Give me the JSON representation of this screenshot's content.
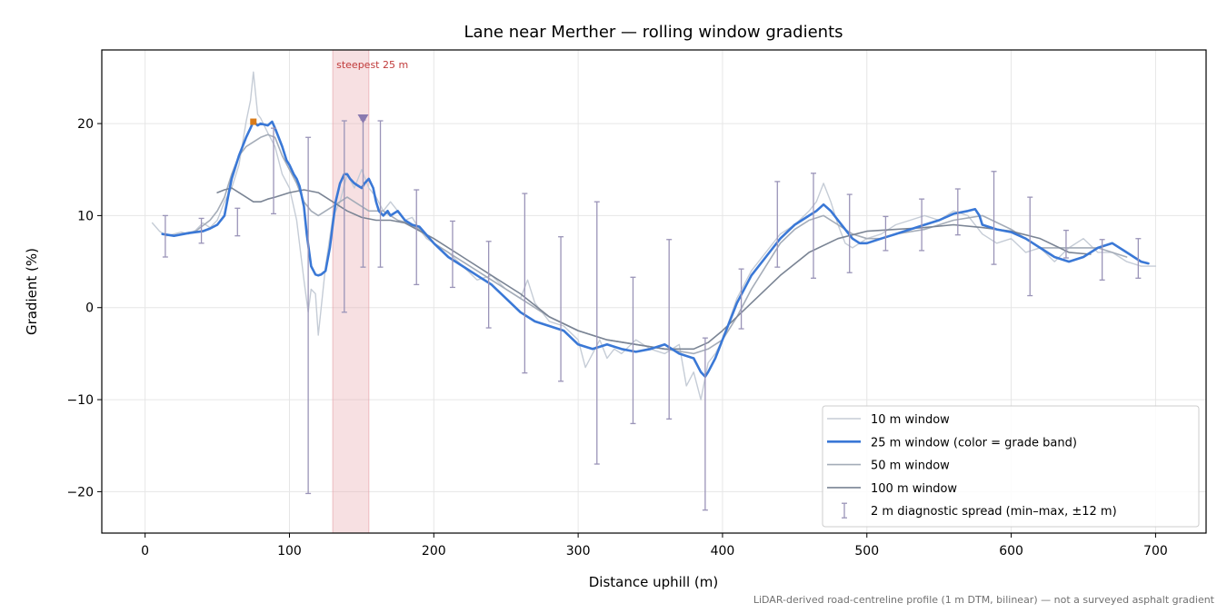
{
  "chart_data": {
    "type": "line",
    "title": "Lane near Merther — rolling window gradients",
    "xlabel": "Distance uphill (m)",
    "ylabel": "Gradient (%)",
    "xlim": [
      -30,
      735
    ],
    "ylim": [
      -24.5,
      28
    ],
    "xticks": [
      0,
      100,
      200,
      300,
      400,
      500,
      600,
      700
    ],
    "yticks": [
      -20,
      -10,
      0,
      10,
      20
    ],
    "xtick_labels": [
      "0",
      "100",
      "200",
      "300",
      "400",
      "500",
      "600",
      "700"
    ],
    "ytick_labels": [
      "−20",
      "−10",
      "0",
      "10",
      "20"
    ],
    "grid": true,
    "legend_position": "lower-right",
    "footnote": "LiDAR-derived road-centreline profile (1 m DTM, bilinear) — not a surveyed asphalt gradient",
    "highlight": {
      "x_start": 130,
      "x_end": 155,
      "label": "steepest 25 m",
      "color": "#e8a6ad"
    },
    "markers": [
      {
        "x": 75,
        "y": 20.2,
        "shape": "square",
        "color": "#d97b1a"
      },
      {
        "x": 151,
        "y": 20.5,
        "shape": "triangle-down",
        "color": "#8a7ab0"
      }
    ],
    "series": [
      {
        "name": "10 m window",
        "color": "#c5ccd6",
        "width": 1.4,
        "x": [
          5,
          10,
          15,
          20,
          25,
          30,
          35,
          40,
          45,
          50,
          55,
          60,
          65,
          70,
          73,
          75,
          78,
          80,
          85,
          90,
          95,
          100,
          105,
          110,
          113,
          115,
          118,
          120,
          125,
          130,
          135,
          140,
          145,
          150,
          155,
          160,
          165,
          170,
          175,
          180,
          185,
          190,
          195,
          200,
          210,
          220,
          230,
          240,
          250,
          260,
          265,
          270,
          280,
          290,
          300,
          305,
          310,
          315,
          320,
          325,
          330,
          340,
          350,
          360,
          370,
          375,
          380,
          385,
          390,
          395,
          400,
          410,
          420,
          430,
          440,
          450,
          460,
          465,
          470,
          475,
          480,
          485,
          490,
          500,
          510,
          520,
          530,
          540,
          550,
          560,
          570,
          580,
          590,
          600,
          610,
          620,
          630,
          640,
          650,
          660,
          670,
          680,
          690,
          700
        ],
        "y": [
          9.2,
          8.3,
          7.8,
          8.0,
          8.2,
          8.0,
          8.4,
          9.2,
          8.7,
          9.5,
          11.5,
          13.0,
          15.5,
          20.2,
          22.5,
          25.6,
          21.0,
          20.6,
          19.0,
          17.5,
          14.5,
          13.0,
          9.5,
          3.0,
          -0.5,
          2.0,
          1.5,
          -3.0,
          4.5,
          9.8,
          11.5,
          14.5,
          13.0,
          15.0,
          13.0,
          12.0,
          10.5,
          11.5,
          10.5,
          9.5,
          9.8,
          8.5,
          7.5,
          7.0,
          6.0,
          4.5,
          3.0,
          3.5,
          2.0,
          1.0,
          3.0,
          0.5,
          -1.5,
          -2.0,
          -3.5,
          -6.5,
          -5.0,
          -3.5,
          -5.5,
          -4.5,
          -5.0,
          -3.5,
          -4.5,
          -5.0,
          -4.0,
          -8.5,
          -7.0,
          -10.0,
          -6.0,
          -5.0,
          -3.5,
          1.0,
          4.0,
          6.0,
          8.0,
          9.0,
          10.5,
          11.5,
          13.5,
          11.5,
          9.0,
          7.0,
          6.5,
          7.5,
          8.0,
          9.0,
          9.5,
          10.0,
          9.5,
          10.5,
          10.0,
          8.0,
          7.0,
          7.5,
          6.0,
          6.5,
          5.0,
          6.5,
          7.5,
          6.0,
          6.0,
          5.0,
          4.5,
          4.5
        ]
      },
      {
        "name": "25 m window (color = grade band)",
        "color": "#3a78d6",
        "width": 2.6,
        "x": [
          12,
          20,
          30,
          40,
          45,
          50,
          55,
          58,
          60,
          65,
          70,
          73,
          75,
          78,
          80,
          85,
          88,
          90,
          95,
          98,
          100,
          103,
          105,
          107,
          110,
          112,
          115,
          118,
          120,
          122,
          125,
          128,
          130,
          132,
          135,
          138,
          140,
          142,
          145,
          148,
          150,
          152,
          155,
          158,
          160,
          162,
          165,
          168,
          170,
          175,
          180,
          185,
          190,
          200,
          210,
          220,
          230,
          240,
          250,
          260,
          270,
          280,
          290,
          300,
          310,
          320,
          330,
          340,
          350,
          360,
          370,
          380,
          385,
          388,
          390,
          395,
          400,
          410,
          420,
          430,
          440,
          450,
          460,
          465,
          470,
          475,
          480,
          485,
          490,
          495,
          500,
          510,
          520,
          530,
          540,
          550,
          560,
          570,
          575,
          578,
          580,
          590,
          600,
          610,
          620,
          630,
          640,
          650,
          660,
          670,
          680,
          690,
          695
        ],
        "y": [
          8.0,
          7.8,
          8.1,
          8.3,
          8.6,
          9.0,
          10.0,
          12.5,
          14.0,
          16.5,
          18.5,
          19.5,
          20.2,
          19.8,
          20.0,
          19.8,
          20.2,
          19.5,
          17.5,
          16.0,
          15.5,
          14.5,
          14.0,
          13.2,
          11.0,
          8.0,
          4.5,
          3.6,
          3.5,
          3.6,
          4.0,
          6.5,
          9.0,
          11.5,
          13.5,
          14.5,
          14.5,
          14.0,
          13.5,
          13.2,
          13.0,
          13.5,
          14.0,
          13.0,
          11.5,
          10.5,
          10.0,
          10.5,
          10.0,
          10.5,
          9.5,
          9.0,
          8.8,
          7.0,
          5.5,
          4.5,
          3.5,
          2.5,
          1.0,
          -0.5,
          -1.5,
          -2.0,
          -2.5,
          -4.0,
          -4.5,
          -4.0,
          -4.5,
          -4.8,
          -4.5,
          -4.0,
          -5.0,
          -5.5,
          -7.0,
          -7.5,
          -7.0,
          -5.5,
          -3.5,
          0.5,
          3.5,
          5.5,
          7.5,
          9.0,
          10.0,
          10.5,
          11.2,
          10.5,
          9.5,
          8.5,
          7.5,
          7.0,
          7.0,
          7.5,
          8.0,
          8.5,
          9.0,
          9.5,
          10.2,
          10.5,
          10.7,
          10.0,
          9.0,
          8.5,
          8.2,
          7.5,
          6.5,
          5.5,
          5.0,
          5.5,
          6.5,
          7.0,
          6.0,
          5.0,
          4.8
        ]
      },
      {
        "name": "50 m window",
        "color": "#a4acb8",
        "width": 1.6,
        "x": [
          25,
          35,
          45,
          50,
          55,
          60,
          65,
          70,
          75,
          80,
          85,
          90,
          95,
          100,
          105,
          110,
          115,
          120,
          125,
          130,
          135,
          140,
          145,
          150,
          155,
          160,
          165,
          170,
          175,
          180,
          190,
          200,
          220,
          240,
          260,
          280,
          300,
          320,
          340,
          360,
          380,
          390,
          400,
          410,
          420,
          430,
          440,
          450,
          460,
          470,
          480,
          490,
          500,
          510,
          520,
          540,
          560,
          580,
          600,
          620,
          640,
          660,
          680
        ],
        "y": [
          8.0,
          8.3,
          9.5,
          10.5,
          12.0,
          14.5,
          16.5,
          17.5,
          18.0,
          18.5,
          18.8,
          18.5,
          16.5,
          15.0,
          13.5,
          11.5,
          10.5,
          10.0,
          10.5,
          11.0,
          11.5,
          12.0,
          11.5,
          11.0,
          10.5,
          10.5,
          10.5,
          10.0,
          9.5,
          9.3,
          8.5,
          7.0,
          5.0,
          3.0,
          1.0,
          -1.0,
          -2.5,
          -3.5,
          -4.0,
          -4.5,
          -5.0,
          -4.5,
          -3.5,
          -1.0,
          2.0,
          4.5,
          7.0,
          8.5,
          9.5,
          10.0,
          9.0,
          8.0,
          7.5,
          7.5,
          8.0,
          8.5,
          9.5,
          10.0,
          8.5,
          6.5,
          6.5,
          6.5,
          5.5
        ]
      },
      {
        "name": "100 m window",
        "color": "#7a8494",
        "width": 1.6,
        "x": [
          50,
          55,
          60,
          65,
          70,
          75,
          80,
          85,
          90,
          100,
          110,
          120,
          130,
          140,
          150,
          160,
          170,
          180,
          200,
          220,
          240,
          260,
          280,
          300,
          320,
          340,
          360,
          380,
          390,
          400,
          420,
          440,
          460,
          480,
          500,
          520,
          540,
          560,
          580,
          600,
          620,
          640,
          655
        ],
        "y": [
          12.5,
          12.8,
          13.0,
          12.5,
          12.0,
          11.5,
          11.5,
          11.8,
          12.0,
          12.5,
          12.8,
          12.5,
          11.5,
          10.5,
          9.8,
          9.5,
          9.5,
          9.2,
          7.5,
          5.5,
          3.5,
          1.5,
          -1.0,
          -2.5,
          -3.5,
          -4.0,
          -4.5,
          -4.5,
          -3.8,
          -2.5,
          0.5,
          3.5,
          6.0,
          7.5,
          8.3,
          8.5,
          8.7,
          9.0,
          8.7,
          8.3,
          7.5,
          6.0,
          5.8
        ]
      },
      {
        "name": "2 m diagnostic spread (min–max, ±12 m)",
        "color": "#9a94b8",
        "type": "errorbar",
        "points": [
          {
            "x": 14,
            "low": 5.5,
            "high": 10.0
          },
          {
            "x": 39,
            "low": 7.0,
            "high": 9.7
          },
          {
            "x": 64,
            "low": 7.8,
            "high": 10.8
          },
          {
            "x": 89,
            "low": 10.2,
            "high": 19.5
          },
          {
            "x": 113,
            "low": -20.2,
            "high": 18.5
          },
          {
            "x": 138,
            "low": -0.5,
            "high": 20.3
          },
          {
            "x": 151,
            "low": 4.4,
            "high": 20.4
          },
          {
            "x": 163,
            "low": 4.4,
            "high": 20.3
          },
          {
            "x": 188,
            "low": 2.5,
            "high": 12.8
          },
          {
            "x": 213,
            "low": 2.2,
            "high": 9.4
          },
          {
            "x": 238,
            "low": -2.2,
            "high": 7.2
          },
          {
            "x": 263,
            "low": -7.1,
            "high": 12.4
          },
          {
            "x": 288,
            "low": -8.0,
            "high": 7.7
          },
          {
            "x": 313,
            "low": -17.0,
            "high": 11.5
          },
          {
            "x": 338,
            "low": -12.6,
            "high": 3.3
          },
          {
            "x": 363,
            "low": -12.1,
            "high": 7.4
          },
          {
            "x": 388,
            "low": -22.0,
            "high": -3.3
          },
          {
            "x": 413,
            "low": -2.3,
            "high": 4.2
          },
          {
            "x": 438,
            "low": 4.4,
            "high": 13.7
          },
          {
            "x": 463,
            "low": 3.2,
            "high": 14.6
          },
          {
            "x": 488,
            "low": 3.8,
            "high": 12.3
          },
          {
            "x": 513,
            "low": 6.2,
            "high": 9.9
          },
          {
            "x": 538,
            "low": 6.2,
            "high": 11.8
          },
          {
            "x": 563,
            "low": 7.9,
            "high": 12.9
          },
          {
            "x": 588,
            "low": 4.7,
            "high": 14.8
          },
          {
            "x": 613,
            "low": 1.3,
            "high": 12.0
          },
          {
            "x": 638,
            "low": 5.4,
            "high": 8.4
          },
          {
            "x": 663,
            "low": 3.0,
            "high": 7.4
          },
          {
            "x": 688,
            "low": 3.2,
            "high": 7.5
          }
        ]
      }
    ]
  }
}
